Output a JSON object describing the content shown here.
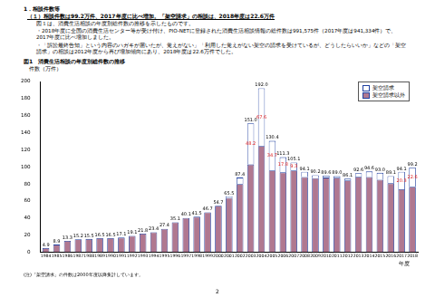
{
  "heading": "1．相談件数等",
  "subheading": "（１）相談件数は99.2万件、2017年度に比べ増加。「架空請求」の相談は、2018年度は22.6万件",
  "paragraphs": [
    "図１は、消費生活相談の年度別総件数の推移を示したものです。",
    "・2018年度に全国の消費生活センター等が受け付け、PIO-NETに登録された消費生活相談情報の総件数は991,575件（2017年度は941,334件）で、2017年度に比べ増加しました。",
    "・「訴訟最終告知」という内容のハガキが届いたが、覚えがない」「利用した覚えがない架空の請求を受けているが、どうしたらいいか」などの「架空請求」の相談は2012年度から再び増加傾向にあり、2018年度は22.6万件でした。"
  ],
  "figure_caption": "図1　消費生活相談の年度別総件数の推移",
  "chart_data": {
    "type": "bar",
    "y_label": "件数（万件）",
    "x_label": "年度",
    "categories": [
      "1984",
      "1985",
      "1986",
      "1987",
      "1988",
      "1989",
      "1990",
      "1991",
      "1992",
      "1993",
      "1994",
      "1995",
      "1996",
      "1997",
      "1998",
      "1999",
      "2000",
      "2001",
      "2002",
      "2003",
      "2004",
      "2005",
      "2006",
      "2007",
      "2008",
      "2009",
      "2010",
      "2011",
      "2012",
      "2013",
      "2014",
      "2015",
      "2016",
      "2017",
      "2018"
    ],
    "series": [
      {
        "name": "架空請求以外",
        "color": "#b07890",
        "values": [
          4.9,
          8.9,
          13.3,
          15.2,
          15.5,
          16.5,
          16.5,
          17.1,
          19.1,
          21.8,
          23.4,
          27.4,
          35.1,
          40.1,
          41.5,
          46.7,
          54.4,
          63.6,
          79.8,
          102.8,
          124.4,
          95.7,
          93.5,
          95.8,
          88.0,
          86.7,
          87.4,
          87.3,
          84.1,
          88.4,
          88.1,
          84.9,
          80.8,
          73.8,
          76.6
        ]
      },
      {
        "name": "架空請求",
        "color": "#ffffff",
        "values": [
          null,
          null,
          null,
          null,
          null,
          null,
          null,
          null,
          null,
          null,
          null,
          null,
          null,
          null,
          null,
          null,
          0.3,
          1.9,
          7.6,
          48.2,
          67.6,
          34.7,
          17.8,
          9.3,
          6.1,
          3.5,
          2.2,
          1.7,
          2.0,
          4.2,
          6.5,
          8.1,
          8.3,
          20.3,
          22.6
        ],
        "data_labels": true,
        "value_labels": [
          null,
          null,
          null,
          null,
          null,
          null,
          null,
          null,
          null,
          null,
          null,
          null,
          null,
          null,
          null,
          null,
          null,
          null,
          null,
          "48.2",
          "67.6",
          "34.7",
          "17.8",
          "9.3",
          null,
          null,
          null,
          null,
          null,
          null,
          null,
          null,
          null,
          "20.3",
          "22.6"
        ]
      }
    ],
    "totals": [
      4.9,
      8.9,
      13.3,
      15.2,
      15.5,
      16.5,
      16.5,
      17.1,
      19.1,
      21.8,
      23.4,
      27.4,
      35.1,
      40.1,
      41.5,
      46.7,
      54.7,
      65.5,
      87.4,
      151.0,
      192.0,
      130.4,
      111.3,
      105.1,
      94.1,
      90.2,
      89.6,
      89.0,
      86.1,
      92.6,
      94.6,
      93.0,
      89.1,
      94.1,
      99.2
    ],
    "total_labels": [
      "4.9",
      "8.9",
      "13.3",
      "15.2",
      "15.5",
      "16.5",
      "16.5",
      "17.1",
      "19.1",
      "21.8",
      "23.4",
      "27.4",
      "35.1",
      "40.1",
      "41.5",
      "46.7",
      "54.7",
      "65.5",
      "87.4",
      "151.0",
      "192.0",
      "130.4",
      "111.3",
      "105.1",
      "94.1",
      "90.2",
      "89.6",
      "89.0",
      "86.1",
      "92.6",
      "94.6",
      "93.0",
      "89.1",
      "94.1",
      "99.2"
    ],
    "ylim": [
      0,
      200
    ],
    "yticks": [
      0,
      20,
      40,
      60,
      80,
      100,
      120,
      140,
      160,
      180,
      200
    ],
    "stacked": true,
    "grid": false,
    "legend": "top-right"
  },
  "note": "(注)「架空請求」の件数は2000年度以降集計しています。",
  "page_number": "2"
}
